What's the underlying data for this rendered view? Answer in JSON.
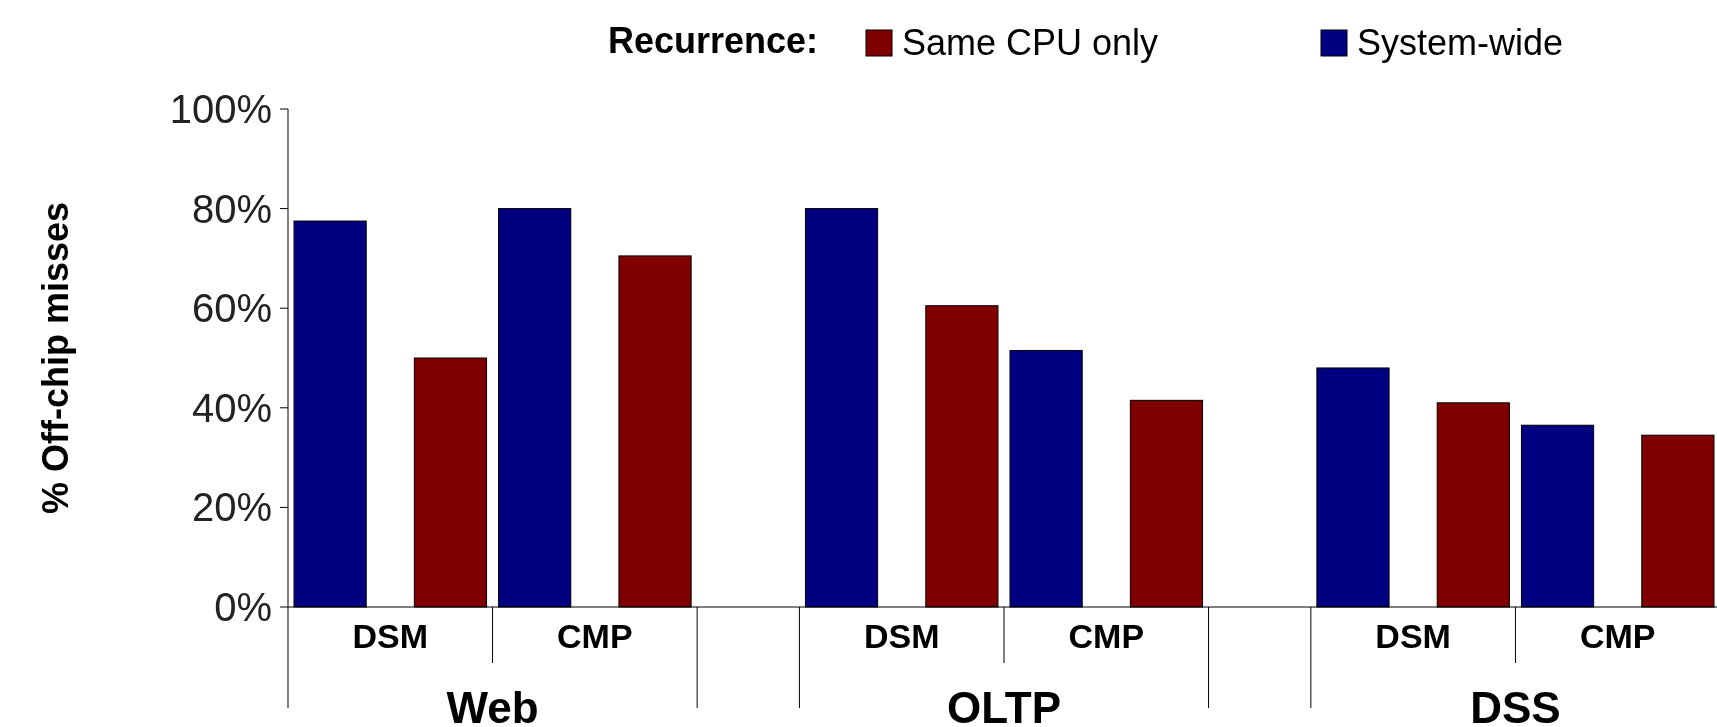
{
  "chart_data": {
    "type": "bar",
    "ylabel": "% Off-chip misses",
    "legend_title": "Recurrence:",
    "legend": "top right",
    "grid": false,
    "categories": [
      "DSM",
      "CMP",
      null,
      "DSM",
      "CMP",
      null,
      "DSM",
      "CMP"
    ],
    "annotations": [
      "Web",
      "OLTP",
      "DSS"
    ],
    "series": [
      {
        "name": "System-wide",
        "color": "#000080",
        "values": [
          77.5,
          80,
          null,
          80,
          51.5,
          null,
          48,
          36.5
        ]
      },
      {
        "name": "Same CPU only",
        "color": "#800000",
        "values": [
          50,
          70.5,
          null,
          60.5,
          41.5,
          null,
          41,
          34.5
        ]
      }
    ],
    "ylim": [
      0,
      100
    ],
    "yticks": [
      {
        "value": 0,
        "label": "0%"
      },
      {
        "value": 20,
        "label": "20%"
      },
      {
        "value": 40,
        "label": "40%"
      },
      {
        "value": 60,
        "label": "60%"
      },
      {
        "value": 80,
        "label": "80%"
      },
      {
        "value": 100,
        "label": "100%"
      }
    ]
  }
}
